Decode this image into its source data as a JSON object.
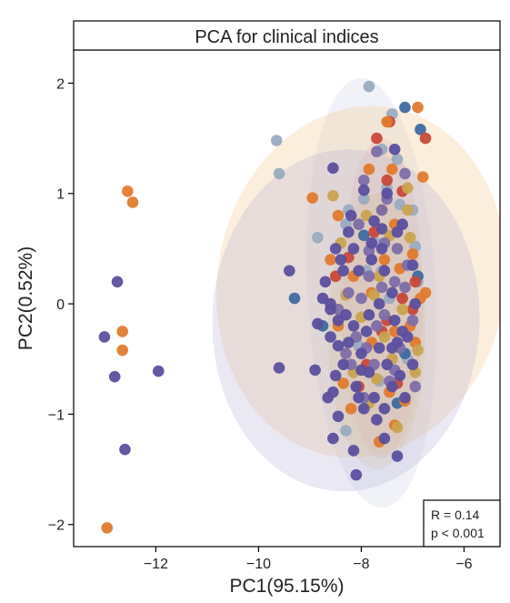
{
  "chart_data": {
    "type": "scatter",
    "title": "PCA for clinical indices",
    "xlabel": "PC1(95.15%)",
    "ylabel": "PC2(0.52%)",
    "xlim": [
      -13.6,
      -5.3
    ],
    "ylim": [
      -2.2,
      2.3
    ],
    "xticks": [
      -12,
      -10,
      -8,
      -6
    ],
    "yticks": [
      -2,
      -1,
      0,
      1,
      2
    ],
    "xtick_labels": [
      "−12",
      "−10",
      "−8",
      "−6"
    ],
    "ytick_labels": [
      "−2",
      "−1",
      "0",
      "1",
      "2"
    ],
    "grid": false,
    "annotation": {
      "lines": [
        "R = 0.14",
        "p < 0.001"
      ],
      "position": "bottom-right"
    },
    "colors": {
      "purple": "#5b4f9e",
      "orange": "#e07a2e",
      "grey_blue": "#9aabc0",
      "steel_blue": "#3e6aa0",
      "red": "#c8483a",
      "gold": "#c9a350",
      "mauve": "#7d6ea8"
    },
    "ellipses": [
      {
        "cx": -7.8,
        "cy": 0.1,
        "rx": 1.25,
        "ry": 1.95,
        "angle": -3,
        "fill": "#aab8da",
        "opacity": 0.18
      },
      {
        "cx": -7.6,
        "cy": 0.05,
        "rx": 0.8,
        "ry": 1.45,
        "angle": 0,
        "fill": "#c8483a",
        "opacity": 0.1
      },
      {
        "cx": -8.0,
        "cy": 0.2,
        "rx": 2.8,
        "ry": 1.6,
        "angle": 10,
        "fill": "#f5c78c",
        "opacity": 0.3
      },
      {
        "cx": -8.3,
        "cy": -0.15,
        "rx": 2.6,
        "ry": 1.55,
        "angle": 2,
        "fill": "#b8b4d8",
        "opacity": 0.3
      },
      {
        "cx": -7.7,
        "cy": -0.25,
        "rx": 0.95,
        "ry": 1.25,
        "angle": 0,
        "fill": "#c9a350",
        "opacity": 0.12
      }
    ],
    "series": [
      {
        "color": "grey_blue",
        "points": [
          [
            -7.85,
            1.97
          ],
          [
            -7.4,
            1.72
          ],
          [
            -9.65,
            1.48
          ],
          [
            -9.6,
            1.18
          ],
          [
            -7.3,
            1.31
          ],
          [
            -7.6,
            1.4
          ],
          [
            -7.5,
            1.05
          ],
          [
            -7.95,
            0.95
          ],
          [
            -8.25,
            0.85
          ],
          [
            -8.85,
            0.6
          ],
          [
            -7.0,
            0.85
          ],
          [
            -6.95,
            0.52
          ],
          [
            -7.6,
            0.3
          ],
          [
            -8.3,
            0.72
          ],
          [
            -7.7,
            0.55
          ],
          [
            -8.05,
            -0.38
          ],
          [
            -7.1,
            -0.5
          ],
          [
            -7.45,
            0.05
          ],
          [
            -8.3,
            -1.15
          ],
          [
            -7.65,
            -0.7
          ],
          [
            -7.25,
            0.9
          ],
          [
            -7.9,
            0.3
          ],
          [
            -6.9,
            0.2
          ]
        ]
      },
      {
        "color": "steel_blue",
        "points": [
          [
            -7.15,
            1.78
          ],
          [
            -6.85,
            1.58
          ],
          [
            -9.3,
            0.05
          ],
          [
            -8.75,
            -0.2
          ],
          [
            -7.3,
            -0.9
          ],
          [
            -6.9,
            0.25
          ],
          [
            -7.15,
            -0.45
          ],
          [
            -7.95,
            0.62
          ]
        ]
      },
      {
        "color": "red",
        "points": [
          [
            -7.45,
            1.65
          ],
          [
            -6.75,
            1.5
          ],
          [
            -7.7,
            1.5
          ],
          [
            -7.5,
            1.12
          ],
          [
            -7.2,
            1.02
          ],
          [
            -8.25,
            0.42
          ],
          [
            -7.75,
            0.65
          ],
          [
            -7.2,
            0.05
          ],
          [
            -6.95,
            0.2
          ],
          [
            -7.6,
            -0.25
          ],
          [
            -8.05,
            -0.75
          ],
          [
            -7.0,
            -0.05
          ],
          [
            -7.3,
            -0.72
          ],
          [
            -8.5,
            0.25
          ],
          [
            -7.9,
            -0.55
          ],
          [
            -7.5,
            -0.15
          ]
        ]
      },
      {
        "color": "orange",
        "points": [
          [
            -12.55,
            1.02
          ],
          [
            -12.45,
            0.92
          ],
          [
            -12.65,
            -0.25
          ],
          [
            -12.65,
            -0.42
          ],
          [
            -12.95,
            -2.03
          ],
          [
            -6.9,
            1.78
          ],
          [
            -7.5,
            1.65
          ],
          [
            -6.8,
            1.15
          ],
          [
            -7.4,
            1.22
          ],
          [
            -8.95,
            0.96
          ],
          [
            -7.85,
            1.22
          ],
          [
            -8.45,
            0.8
          ],
          [
            -7.35,
            0.72
          ],
          [
            -7.0,
            0.45
          ],
          [
            -8.6,
            0.4
          ],
          [
            -7.55,
            0.4
          ],
          [
            -6.85,
            0.05
          ],
          [
            -6.75,
            0.1
          ],
          [
            -7.25,
            0.32
          ],
          [
            -7.8,
            0.1
          ],
          [
            -8.45,
            -0.2
          ],
          [
            -6.95,
            -0.35
          ],
          [
            -7.35,
            -0.25
          ],
          [
            -7.8,
            -0.35
          ],
          [
            -8.35,
            -0.72
          ],
          [
            -7.15,
            -0.88
          ],
          [
            -7.45,
            -0.8
          ],
          [
            -8.2,
            -0.95
          ],
          [
            -7.35,
            -1.1
          ],
          [
            -7.65,
            -1.25
          ],
          [
            -8.15,
            0.25
          ],
          [
            -7.05,
            -0.2
          ],
          [
            -7.6,
            0.85
          ]
        ]
      },
      {
        "color": "gold",
        "points": [
          [
            -8.55,
            0.98
          ],
          [
            -7.9,
            0.8
          ],
          [
            -7.1,
            1.05
          ],
          [
            -7.45,
            0.62
          ],
          [
            -8.3,
            0.08
          ],
          [
            -7.75,
            0.08
          ],
          [
            -7.2,
            -0.05
          ],
          [
            -8.0,
            -0.12
          ],
          [
            -7.55,
            -0.3
          ],
          [
            -6.95,
            -0.62
          ],
          [
            -7.7,
            -0.68
          ],
          [
            -7.3,
            -1.12
          ],
          [
            -8.15,
            -0.62
          ],
          [
            -7.05,
            0.6
          ],
          [
            -7.85,
            -0.9
          ],
          [
            -7.4,
            -0.5
          ],
          [
            -6.9,
            -0.42
          ],
          [
            -8.4,
            0.55
          ],
          [
            -7.1,
            0.85
          ],
          [
            -7.65,
            0.25
          ]
        ]
      },
      {
        "color": "mauve",
        "points": [
          [
            -7.7,
            1.38
          ],
          [
            -7.15,
            1.18
          ],
          [
            -7.95,
            1.12
          ],
          [
            -7.6,
            0.85
          ],
          [
            -7.3,
            0.5
          ],
          [
            -7.85,
            0.25
          ],
          [
            -7.15,
            0.15
          ],
          [
            -7.55,
            -0.1
          ],
          [
            -8.1,
            -0.3
          ],
          [
            -7.25,
            -0.4
          ],
          [
            -7.75,
            -0.55
          ],
          [
            -8.3,
            -0.45
          ],
          [
            -7.45,
            -0.7
          ],
          [
            -7.95,
            -0.85
          ],
          [
            -8.25,
            0.1
          ],
          [
            -7.55,
            0.55
          ],
          [
            -8.0,
            0.05
          ],
          [
            -7.0,
            -0.15
          ],
          [
            -6.95,
            -0.75
          ],
          [
            -7.85,
            0.48
          ],
          [
            -7.35,
            0.2
          ],
          [
            -8.05,
            0.72
          ],
          [
            -7.7,
            -0.2
          ],
          [
            -7.35,
            -0.6
          ],
          [
            -8.45,
            -0.05
          ],
          [
            -7.9,
            -0.4
          ],
          [
            -7.1,
            0.35
          ],
          [
            -7.5,
            0.95
          ],
          [
            -7.6,
            0.15
          ],
          [
            -8.2,
            -0.55
          ]
        ]
      },
      {
        "color": "purple",
        "points": [
          [
            -13.0,
            -0.3
          ],
          [
            -12.75,
            0.2
          ],
          [
            -12.8,
            -0.66
          ],
          [
            -12.6,
            -1.32
          ],
          [
            -11.95,
            -0.61
          ],
          [
            -9.6,
            -0.58
          ],
          [
            -9.4,
            0.3
          ],
          [
            -8.55,
            1.23
          ],
          [
            -8.6,
            0.0
          ],
          [
            -8.9,
            -0.6
          ],
          [
            -8.65,
            -0.85
          ],
          [
            -8.45,
            -1.02
          ],
          [
            -8.55,
            -1.22
          ],
          [
            -8.15,
            -1.33
          ],
          [
            -8.1,
            -1.55
          ],
          [
            -7.3,
            -1.38
          ],
          [
            -7.55,
            -1.22
          ],
          [
            -8.75,
            0.05
          ],
          [
            -8.45,
            -0.38
          ],
          [
            -8.35,
            -0.55
          ],
          [
            -8.0,
            -0.45
          ],
          [
            -8.5,
            0.5
          ],
          [
            -8.35,
            0.3
          ],
          [
            -8.25,
            0.65
          ],
          [
            -8.2,
            0.8
          ],
          [
            -7.75,
            0.75
          ],
          [
            -8.05,
            0.3
          ],
          [
            -8.6,
            -0.3
          ],
          [
            -8.85,
            -0.18
          ],
          [
            -8.55,
            -0.8
          ],
          [
            -8.15,
            -0.2
          ],
          [
            -7.95,
            -0.95
          ],
          [
            -7.55,
            -0.95
          ],
          [
            -7.75,
            -0.85
          ],
          [
            -7.4,
            -0.4
          ],
          [
            -7.2,
            -0.25
          ],
          [
            -7.85,
            -0.1
          ],
          [
            -7.4,
            0.1
          ],
          [
            -7.15,
            -0.85
          ],
          [
            -7.35,
            1.4
          ],
          [
            -7.5,
            1.0
          ],
          [
            -7.95,
            1.03
          ],
          [
            -7.3,
            0.65
          ],
          [
            -7.8,
            0.4
          ],
          [
            -7.2,
            0.72
          ],
          [
            -7.6,
            0.68
          ],
          [
            -7.0,
            0.35
          ],
          [
            -7.65,
            -0.4
          ],
          [
            -7.85,
            -0.62
          ],
          [
            -8.1,
            -0.75
          ],
          [
            -7.25,
            -0.65
          ],
          [
            -6.95,
            0.0
          ],
          [
            -7.5,
            -0.55
          ],
          [
            -8.3,
            -0.1
          ],
          [
            -8.7,
            0.2
          ],
          [
            -7.6,
            0.5
          ],
          [
            -7.35,
            -0.15
          ],
          [
            -7.8,
            0.55
          ],
          [
            -8.4,
            0.4
          ],
          [
            -8.05,
            -0.85
          ],
          [
            -7.4,
            -0.75
          ],
          [
            -7.7,
            -1.05
          ],
          [
            -8.5,
            -0.65
          ],
          [
            -8.25,
            -0.35
          ],
          [
            -8.6,
            -0.05
          ],
          [
            -7.1,
            -0.3
          ],
          [
            -7.0,
            -0.55
          ],
          [
            -8.15,
            0.5
          ],
          [
            -7.65,
            0.0
          ],
          [
            -8.0,
            -0.6
          ],
          [
            -8.45,
            -0.15
          ],
          [
            -7.9,
            -0.25
          ],
          [
            -7.3,
            -0.35
          ],
          [
            -7.55,
            0.3
          ]
        ]
      }
    ]
  }
}
